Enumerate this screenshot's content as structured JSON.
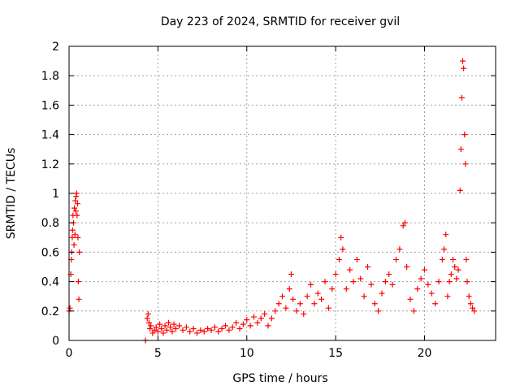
{
  "chart_data": {
    "type": "scatter",
    "title": "Day 223 of 2024, SRMTID for receiver gvil",
    "xlabel": "GPS time / hours",
    "ylabel": "SRMTID / TECUs",
    "xlim": [
      0,
      24
    ],
    "ylim": [
      0,
      2
    ],
    "x_ticks": [
      0,
      5,
      10,
      15,
      20
    ],
    "x_tick_labels": [
      "0",
      "5",
      "10",
      "15",
      "20"
    ],
    "y_ticks": [
      0,
      0.2,
      0.4,
      0.6,
      0.8,
      1,
      1.2,
      1.4,
      1.6,
      1.8,
      2
    ],
    "y_tick_labels": [
      "0",
      "0.2",
      "0.4",
      "0.6",
      "0.8",
      "1",
      "1.2",
      "1.4",
      "1.6",
      "1.8",
      "2"
    ],
    "grid": true,
    "marker": "+",
    "color": "#ff0000",
    "series": [
      {
        "name": "SRMTID",
        "points": [
          [
            0.0,
            0.2
          ],
          [
            0.05,
            0.22
          ],
          [
            0.1,
            0.45
          ],
          [
            0.12,
            0.55
          ],
          [
            0.15,
            0.6
          ],
          [
            0.18,
            0.7
          ],
          [
            0.2,
            0.75
          ],
          [
            0.22,
            0.85
          ],
          [
            0.25,
            0.8
          ],
          [
            0.28,
            0.65
          ],
          [
            0.3,
            0.9
          ],
          [
            0.33,
            0.72
          ],
          [
            0.35,
            0.95
          ],
          [
            0.38,
            0.88
          ],
          [
            0.4,
            0.98
          ],
          [
            0.42,
            1.0
          ],
          [
            0.45,
            0.85
          ],
          [
            0.48,
            0.93
          ],
          [
            0.5,
            0.7
          ],
          [
            0.52,
            0.4
          ],
          [
            0.55,
            0.28
          ],
          [
            0.58,
            0.6
          ],
          [
            4.3,
            0.0
          ],
          [
            4.4,
            0.15
          ],
          [
            4.45,
            0.18
          ],
          [
            4.5,
            0.12
          ],
          [
            4.55,
            0.08
          ],
          [
            4.6,
            0.1
          ],
          [
            4.7,
            0.05
          ],
          [
            4.8,
            0.07
          ],
          [
            4.9,
            0.09
          ],
          [
            5.0,
            0.06
          ],
          [
            5.1,
            0.11
          ],
          [
            5.2,
            0.08
          ],
          [
            5.3,
            0.05
          ],
          [
            5.4,
            0.1
          ],
          [
            5.5,
            0.07
          ],
          [
            5.6,
            0.12
          ],
          [
            5.7,
            0.09
          ],
          [
            5.8,
            0.06
          ],
          [
            5.9,
            0.11
          ],
          [
            6.0,
            0.08
          ],
          [
            6.2,
            0.1
          ],
          [
            6.4,
            0.07
          ],
          [
            6.6,
            0.09
          ],
          [
            6.8,
            0.06
          ],
          [
            7.0,
            0.08
          ],
          [
            7.2,
            0.05
          ],
          [
            7.4,
            0.07
          ],
          [
            7.6,
            0.06
          ],
          [
            7.8,
            0.08
          ],
          [
            8.0,
            0.07
          ],
          [
            8.2,
            0.09
          ],
          [
            8.4,
            0.06
          ],
          [
            8.6,
            0.08
          ],
          [
            8.8,
            0.1
          ],
          [
            9.0,
            0.07
          ],
          [
            9.2,
            0.09
          ],
          [
            9.4,
            0.12
          ],
          [
            9.6,
            0.08
          ],
          [
            9.8,
            0.11
          ],
          [
            10.0,
            0.14
          ],
          [
            10.2,
            0.1
          ],
          [
            10.4,
            0.16
          ],
          [
            10.6,
            0.12
          ],
          [
            10.8,
            0.15
          ],
          [
            11.0,
            0.18
          ],
          [
            11.2,
            0.1
          ],
          [
            11.4,
            0.15
          ],
          [
            11.6,
            0.2
          ],
          [
            11.8,
            0.25
          ],
          [
            12.0,
            0.3
          ],
          [
            12.2,
            0.22
          ],
          [
            12.4,
            0.35
          ],
          [
            12.5,
            0.45
          ],
          [
            12.6,
            0.28
          ],
          [
            12.8,
            0.2
          ],
          [
            13.0,
            0.25
          ],
          [
            13.2,
            0.18
          ],
          [
            13.4,
            0.3
          ],
          [
            13.6,
            0.38
          ],
          [
            13.8,
            0.25
          ],
          [
            14.0,
            0.32
          ],
          [
            14.2,
            0.28
          ],
          [
            14.4,
            0.4
          ],
          [
            14.6,
            0.22
          ],
          [
            14.8,
            0.35
          ],
          [
            15.0,
            0.45
          ],
          [
            15.2,
            0.55
          ],
          [
            15.3,
            0.7
          ],
          [
            15.4,
            0.62
          ],
          [
            15.6,
            0.35
          ],
          [
            15.8,
            0.48
          ],
          [
            16.0,
            0.4
          ],
          [
            16.2,
            0.55
          ],
          [
            16.4,
            0.42
          ],
          [
            16.6,
            0.3
          ],
          [
            16.8,
            0.5
          ],
          [
            17.0,
            0.38
          ],
          [
            17.2,
            0.25
          ],
          [
            17.4,
            0.2
          ],
          [
            17.6,
            0.32
          ],
          [
            17.8,
            0.4
          ],
          [
            18.0,
            0.45
          ],
          [
            18.2,
            0.38
          ],
          [
            18.4,
            0.55
          ],
          [
            18.6,
            0.62
          ],
          [
            18.8,
            0.78
          ],
          [
            18.9,
            0.8
          ],
          [
            19.0,
            0.5
          ],
          [
            19.2,
            0.28
          ],
          [
            19.4,
            0.2
          ],
          [
            19.6,
            0.35
          ],
          [
            19.8,
            0.42
          ],
          [
            20.0,
            0.48
          ],
          [
            20.2,
            0.38
          ],
          [
            20.4,
            0.32
          ],
          [
            20.6,
            0.25
          ],
          [
            20.8,
            0.4
          ],
          [
            21.0,
            0.55
          ],
          [
            21.1,
            0.62
          ],
          [
            21.2,
            0.72
          ],
          [
            21.3,
            0.3
          ],
          [
            21.4,
            0.4
          ],
          [
            21.5,
            0.45
          ],
          [
            21.6,
            0.55
          ],
          [
            21.7,
            0.5
          ],
          [
            21.8,
            0.42
          ],
          [
            21.9,
            0.48
          ],
          [
            22.0,
            1.02
          ],
          [
            22.05,
            1.3
          ],
          [
            22.1,
            1.65
          ],
          [
            22.15,
            1.9
          ],
          [
            22.2,
            1.85
          ],
          [
            22.25,
            1.4
          ],
          [
            22.3,
            1.2
          ],
          [
            22.35,
            0.55
          ],
          [
            22.4,
            0.4
          ],
          [
            22.5,
            0.3
          ],
          [
            22.6,
            0.25
          ],
          [
            22.7,
            0.22
          ],
          [
            22.8,
            0.2
          ]
        ]
      }
    ]
  }
}
